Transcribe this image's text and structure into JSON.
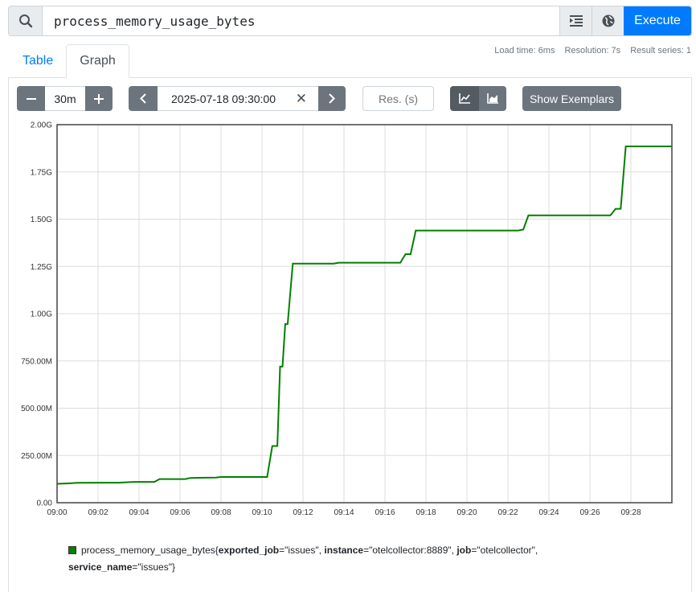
{
  "query": {
    "value": "process_memory_usage_bytes",
    "execute_label": "Execute"
  },
  "stats": {
    "load_time": "Load time: 6ms",
    "resolution": "Resolution: 7s",
    "result_series": "Result series: 1"
  },
  "tabs": {
    "table": "Table",
    "graph": "Graph"
  },
  "controls": {
    "range": "30m",
    "end_time": "2025-07-18 09:30:00",
    "resolution_placeholder": "Res. (s)",
    "exemplars_label": "Show Exemplars"
  },
  "colors": {
    "series": "#008000",
    "accent": "#007bff",
    "button": "#6c757d"
  },
  "chart_data": {
    "type": "line",
    "x_tick_labels": [
      "09:00",
      "09:02",
      "09:04",
      "09:06",
      "09:08",
      "09:10",
      "09:12",
      "09:14",
      "09:16",
      "09:18",
      "09:20",
      "09:22",
      "09:24",
      "09:26",
      "09:28"
    ],
    "y_tick_labels": [
      "0.00",
      "250.00M",
      "500.00M",
      "750.00M",
      "1.00G",
      "1.25G",
      "1.50G",
      "1.75G",
      "2.00G"
    ],
    "xlim": [
      "09:00",
      "09:30"
    ],
    "ylim": [
      0,
      2000000000
    ],
    "grid": true,
    "series": [
      {
        "color": "#008000",
        "points": [
          [
            "09:00:00",
            100000000
          ],
          [
            "09:00:30",
            102000000
          ],
          [
            "09:01:00",
            105000000
          ],
          [
            "09:02:00",
            106000000
          ],
          [
            "09:03:00",
            106000000
          ],
          [
            "09:03:45",
            110000000
          ],
          [
            "09:04:45",
            110000000
          ],
          [
            "09:05:00",
            125000000
          ],
          [
            "09:06:15",
            125000000
          ],
          [
            "09:06:30",
            131000000
          ],
          [
            "09:07:45",
            133000000
          ],
          [
            "09:08:00",
            136000000
          ],
          [
            "09:10:15",
            136000000
          ],
          [
            "09:10:30",
            300000000
          ],
          [
            "09:10:45",
            300000000
          ],
          [
            "09:10:53",
            720000000
          ],
          [
            "09:11:00",
            720000000
          ],
          [
            "09:11:08",
            945000000
          ],
          [
            "09:11:15",
            945000000
          ],
          [
            "09:11:30",
            1265000000
          ],
          [
            "09:13:30",
            1265000000
          ],
          [
            "09:13:45",
            1270000000
          ],
          [
            "09:16:45",
            1270000000
          ],
          [
            "09:17:00",
            1315000000
          ],
          [
            "09:17:15",
            1315000000
          ],
          [
            "09:17:30",
            1440000000
          ],
          [
            "09:22:30",
            1440000000
          ],
          [
            "09:22:45",
            1445000000
          ],
          [
            "09:23:00",
            1520000000
          ],
          [
            "09:27:00",
            1520000000
          ],
          [
            "09:27:15",
            1555000000
          ],
          [
            "09:27:30",
            1555000000
          ],
          [
            "09:27:45",
            1885000000
          ],
          [
            "09:30:00",
            1885000000
          ]
        ]
      }
    ]
  },
  "legend": {
    "metric": "process_memory_usage_bytes",
    "open_brace": "{",
    "close_brace": "}",
    "labels": [
      {
        "key": "exported_job",
        "value": "\"issues\"",
        "sep": ", "
      },
      {
        "key": "instance",
        "value": "\"otelcollector:8889\"",
        "sep": ", "
      },
      {
        "key": "job",
        "value": "\"otelcollector\"",
        "sep": ", "
      },
      {
        "key": "service_name",
        "value": "\"issues\"",
        "sep": ""
      }
    ]
  }
}
